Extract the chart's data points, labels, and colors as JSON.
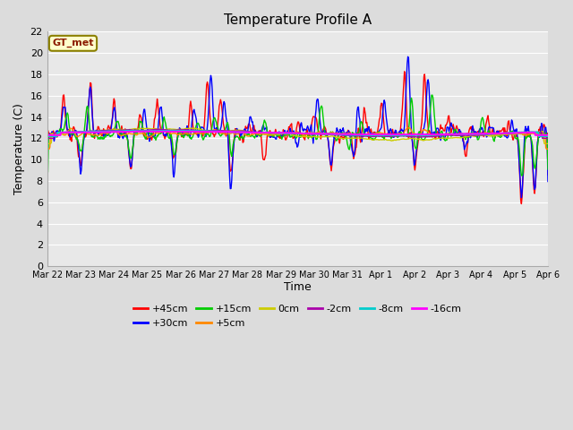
{
  "title": "Temperature Profile A",
  "xlabel": "Time",
  "ylabel": "Temperature (C)",
  "ylim": [
    0,
    22
  ],
  "yticks": [
    0,
    2,
    4,
    6,
    8,
    10,
    12,
    14,
    16,
    18,
    20,
    22
  ],
  "xtick_labels": [
    "Mar 22",
    "Mar 23",
    "Mar 24",
    "Mar 25",
    "Mar 26",
    "Mar 27",
    "Mar 28",
    "Mar 29",
    "Mar 30",
    "Mar 31",
    "Apr 1",
    "Apr 2",
    "Apr 3",
    "Apr 4",
    "Apr 5",
    "Apr 6"
  ],
  "gt_met_label": "GT_met",
  "gt_met_box_color": "#FFFFCC",
  "gt_met_border_color": "#8B8000",
  "series": [
    {
      "label": "+45cm",
      "color": "#FF0000",
      "lw": 1.0
    },
    {
      "label": "+30cm",
      "color": "#0000FF",
      "lw": 1.0
    },
    {
      "label": "+15cm",
      "color": "#00CC00",
      "lw": 1.0
    },
    {
      "label": "+5cm",
      "color": "#FF8800",
      "lw": 1.0
    },
    {
      "label": "0cm",
      "color": "#CCCC00",
      "lw": 1.0
    },
    {
      "label": "-2cm",
      "color": "#AA00AA",
      "lw": 1.0
    },
    {
      "label": "-8cm",
      "color": "#00CCCC",
      "lw": 1.5
    },
    {
      "label": "-16cm",
      "color": "#FF00FF",
      "lw": 1.5
    }
  ],
  "fig_bg": "#DCDCDC",
  "ax_bg": "#E8E8E8",
  "grid_color": "#FFFFFF",
  "n_days": 15
}
